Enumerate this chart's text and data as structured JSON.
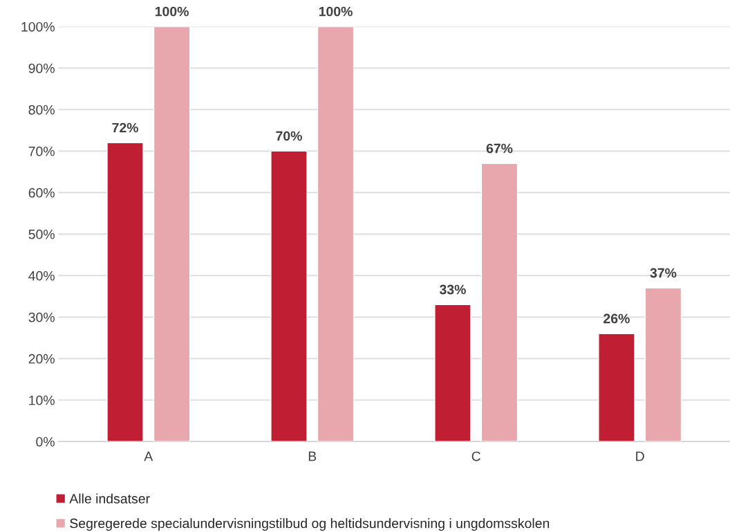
{
  "chart_data": {
    "type": "bar",
    "categories": [
      "A",
      "B",
      "C",
      "D"
    ],
    "series": [
      {
        "name": "Alle indsatser",
        "color": "#c01f33",
        "values": [
          72,
          70,
          33,
          26
        ],
        "value_labels": [
          "72%",
          "70%",
          "33%",
          "26%"
        ]
      },
      {
        "name": "Segregerede specialundervisningstilbud og heltidsundervisning i ungdomsskolen",
        "color": "#e8a7ac",
        "values": [
          100,
          100,
          67,
          37
        ],
        "value_labels": [
          "100%",
          "100%",
          "67%",
          "37%"
        ]
      }
    ],
    "ylim": [
      0,
      100
    ],
    "yticks": [
      {
        "value": 0,
        "label": "0%"
      },
      {
        "value": 10,
        "label": "10%"
      },
      {
        "value": 20,
        "label": "20%"
      },
      {
        "value": 30,
        "label": "30%"
      },
      {
        "value": 40,
        "label": "40%"
      },
      {
        "value": 50,
        "label": "50%"
      },
      {
        "value": 60,
        "label": "60%"
      },
      {
        "value": 70,
        "label": "70%"
      },
      {
        "value": 80,
        "label": "80%"
      },
      {
        "value": 90,
        "label": "90%"
      },
      {
        "value": 100,
        "label": "100%"
      }
    ],
    "grid": "y",
    "legend": "bottom"
  }
}
